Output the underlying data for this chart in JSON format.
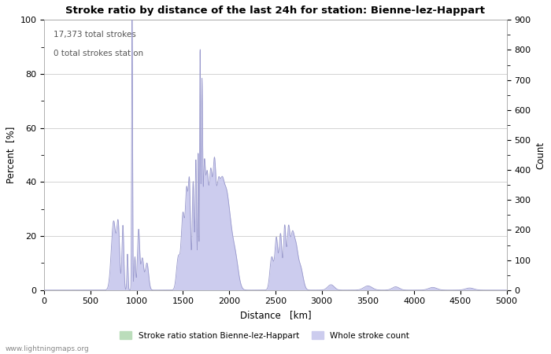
{
  "title": "Stroke ratio by distance of the last 24h for station: Bienne-lez-Happart",
  "xlabel": "Distance   [km]",
  "ylabel_left": "Percent  [%]",
  "ylabel_right": "Count",
  "annotation_line1": "17,373 total strokes",
  "annotation_line2": "0 total strokes station",
  "xlim": [
    0,
    5000
  ],
  "ylim_left": [
    0,
    100
  ],
  "ylim_right": [
    0,
    900
  ],
  "yticks_left": [
    0,
    20,
    40,
    60,
    80,
    100
  ],
  "yticks_right": [
    0,
    100,
    200,
    300,
    400,
    500,
    600,
    700,
    800,
    900
  ],
  "xticks": [
    0,
    500,
    1000,
    1500,
    2000,
    2500,
    3000,
    3500,
    4000,
    4500,
    5000
  ],
  "legend_label_green": "Stroke ratio station Bienne-lez-Happart",
  "legend_label_blue": "Whole stroke count",
  "line_color": "#9999cc",
  "fill_blue_color": "#ccccee",
  "fill_green_color": "#bbddbb",
  "watermark": "www.lightningmaps.org",
  "background_color": "#ffffff",
  "grid_color": "#cccccc"
}
